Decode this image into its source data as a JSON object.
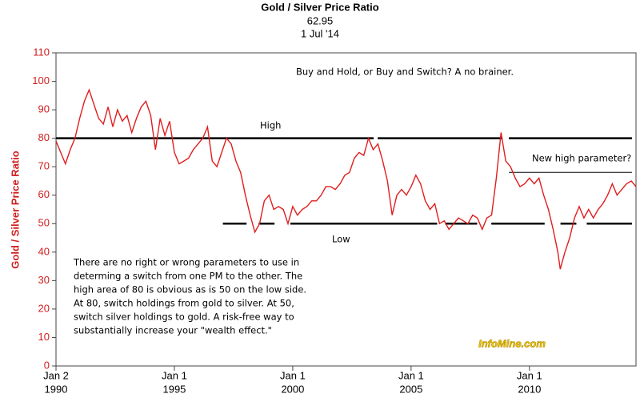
{
  "chart_data": {
    "type": "line",
    "title": "Gold / Silver Price Ratio",
    "subtitle": "62.95",
    "date": "1 Jul '14",
    "ylabel": "Gold / Silver Price Ratio",
    "color": "#e01e1e",
    "xlim": [
      1990,
      2014.5
    ],
    "ylim": [
      0,
      110
    ],
    "yticks": [
      0,
      10,
      20,
      30,
      40,
      50,
      60,
      70,
      80,
      90,
      100,
      110
    ],
    "xticks": [
      {
        "value": 1990,
        "label": "Jan 2",
        "year": "1990"
      },
      {
        "value": 1995,
        "label": "Jan 1",
        "year": "1995"
      },
      {
        "value": 2000,
        "label": "Jan 1",
        "year": "2000"
      },
      {
        "value": 2005,
        "label": "Jan 1",
        "year": "2005"
      },
      {
        "value": 2010,
        "label": "Jan 1",
        "year": "2010"
      }
    ],
    "x": [
      1990.0,
      1990.2,
      1990.4,
      1990.6,
      1990.8,
      1991.0,
      1991.2,
      1991.4,
      1991.6,
      1991.8,
      1992.0,
      1992.2,
      1992.4,
      1992.6,
      1992.8,
      1993.0,
      1993.2,
      1993.4,
      1993.6,
      1993.8,
      1994.0,
      1994.2,
      1994.4,
      1994.6,
      1994.8,
      1995.0,
      1995.2,
      1995.4,
      1995.6,
      1995.8,
      1996.0,
      1996.2,
      1996.4,
      1996.6,
      1996.8,
      1997.0,
      1997.2,
      1997.4,
      1997.6,
      1997.8,
      1998.0,
      1998.2,
      1998.4,
      1998.6,
      1998.8,
      1999.0,
      1999.2,
      1999.4,
      1999.6,
      1999.8,
      2000.0,
      2000.2,
      2000.4,
      2000.6,
      2000.8,
      2001.0,
      2001.2,
      2001.4,
      2001.6,
      2001.8,
      2002.0,
      2002.2,
      2002.4,
      2002.6,
      2002.8,
      2003.0,
      2003.2,
      2003.4,
      2003.6,
      2003.8,
      2004.0,
      2004.2,
      2004.4,
      2004.6,
      2004.8,
      2005.0,
      2005.2,
      2005.4,
      2005.6,
      2005.8,
      2006.0,
      2006.2,
      2006.4,
      2006.6,
      2006.8,
      2007.0,
      2007.2,
      2007.4,
      2007.6,
      2007.8,
      2008.0,
      2008.2,
      2008.4,
      2008.6,
      2008.8,
      2009.0,
      2009.2,
      2009.4,
      2009.6,
      2009.8,
      2010.0,
      2010.2,
      2010.4,
      2010.6,
      2010.8,
      2011.0,
      2011.2,
      2011.3,
      2011.5,
      2011.7,
      2011.9,
      2012.1,
      2012.3,
      2012.5,
      2012.7,
      2012.9,
      2013.1,
      2013.3,
      2013.5,
      2013.7,
      2013.9,
      2014.1,
      2014.3,
      2014.5
    ],
    "values": [
      79,
      75,
      71,
      76,
      80,
      87,
      93,
      97,
      92,
      87,
      85,
      91,
      84,
      90,
      86,
      88,
      82,
      87,
      91,
      93,
      88,
      76,
      87,
      81,
      86,
      75,
      71,
      72,
      73,
      76,
      78,
      80,
      84,
      72,
      70,
      75,
      80,
      78,
      72,
      68,
      60,
      53,
      47,
      50,
      58,
      60,
      55,
      56,
      55,
      50,
      56,
      53,
      55,
      56,
      58,
      58,
      60,
      63,
      63,
      62,
      64,
      67,
      68,
      73,
      75,
      74,
      80,
      76,
      78,
      72,
      65,
      53,
      60,
      62,
      60,
      63,
      67,
      64,
      58,
      55,
      57,
      50,
      51,
      48,
      50,
      52,
      51,
      50,
      53,
      52,
      48,
      52,
      53,
      66,
      82,
      72,
      70,
      66,
      63,
      64,
      66,
      64,
      66,
      60,
      55,
      48,
      40,
      34,
      40,
      45,
      52,
      56,
      52,
      55,
      52,
      55,
      57,
      60,
      64,
      60,
      62,
      64,
      65,
      63
    ],
    "reference_lines": [
      {
        "value": 80,
        "segments": [
          [
            1990,
            2003.42
          ],
          [
            2003.59,
            2008.86
          ],
          [
            2009.13,
            2014.33
          ]
        ]
      },
      {
        "value": 68,
        "segments": [
          [
            2009.13,
            2014.33
          ]
        ]
      },
      {
        "value": 50,
        "segments": [
          [
            1997.05,
            1998.05
          ],
          [
            1998.56,
            1999.23
          ],
          [
            1999.9,
            2006.1
          ],
          [
            2006.44,
            2007.79
          ],
          [
            2008.39,
            2010.64
          ],
          [
            2011.31,
            2011.98
          ],
          [
            2012.42,
            2014.33
          ]
        ]
      }
    ],
    "annotations": {
      "headline": "Buy and Hold, or Buy and Switch?  A no brainer.",
      "high": "High",
      "new_high": "New high parameter?",
      "low": "Low",
      "note": [
        "There are no right or wrong parameters to use in",
        "determing a switch from one PM to the other.  The",
        "high area of 80 is obvious as is 50 on the low side.",
        "At 80, switch holdings from gold to silver.  At 50,",
        "switch silver holdings to gold.  A risk-free way to",
        "substantially increase your \"wealth effect.\""
      ],
      "watermark": "InfoMine.com"
    }
  }
}
